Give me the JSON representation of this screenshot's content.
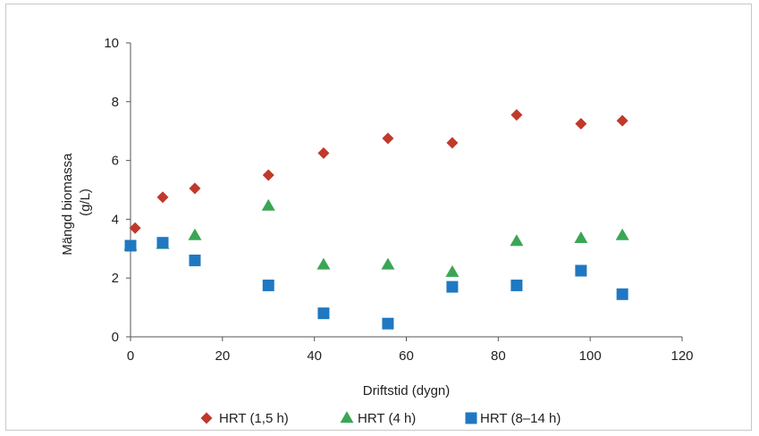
{
  "chart_data": {
    "type": "scatter",
    "title": "",
    "xlabel": "Driftstid (dygn)",
    "ylabel_lines": [
      "Mängd biomassa",
      "(g/L)"
    ],
    "xlim": [
      0,
      120
    ],
    "ylim": [
      0,
      10
    ],
    "xticks": [
      0,
      20,
      40,
      60,
      80,
      100,
      120
    ],
    "yticks": [
      0,
      2,
      4,
      6,
      8,
      10
    ],
    "grid": false,
    "legend_position": "bottom",
    "series": [
      {
        "name": "HRT (1,5 h)",
        "marker": "diamond",
        "color": "#c0392b",
        "points": [
          [
            1,
            3.7
          ],
          [
            7,
            4.75
          ],
          [
            14,
            5.05
          ],
          [
            30,
            5.5
          ],
          [
            42,
            6.25
          ],
          [
            56,
            6.75
          ],
          [
            70,
            6.6
          ],
          [
            84,
            7.55
          ],
          [
            98,
            7.25
          ],
          [
            107,
            7.35
          ]
        ]
      },
      {
        "name": "HRT (4 h)",
        "marker": "triangle",
        "color": "#3aa655",
        "points": [
          [
            0,
            3.1
          ],
          [
            7,
            3.15
          ],
          [
            14,
            3.45
          ],
          [
            30,
            4.45
          ],
          [
            42,
            2.45
          ],
          [
            56,
            2.45
          ],
          [
            70,
            2.2
          ],
          [
            84,
            3.25
          ],
          [
            98,
            3.35
          ],
          [
            107,
            3.45
          ]
        ]
      },
      {
        "name": "HRT (8–14 h)",
        "marker": "square",
        "color": "#1f78c1",
        "points": [
          [
            0,
            3.1
          ],
          [
            7,
            3.2
          ],
          [
            14,
            2.6
          ],
          [
            30,
            1.75
          ],
          [
            42,
            0.8
          ],
          [
            56,
            0.45
          ],
          [
            70,
            1.7
          ],
          [
            84,
            1.75
          ],
          [
            98,
            2.25
          ],
          [
            107,
            1.45
          ]
        ]
      }
    ]
  }
}
